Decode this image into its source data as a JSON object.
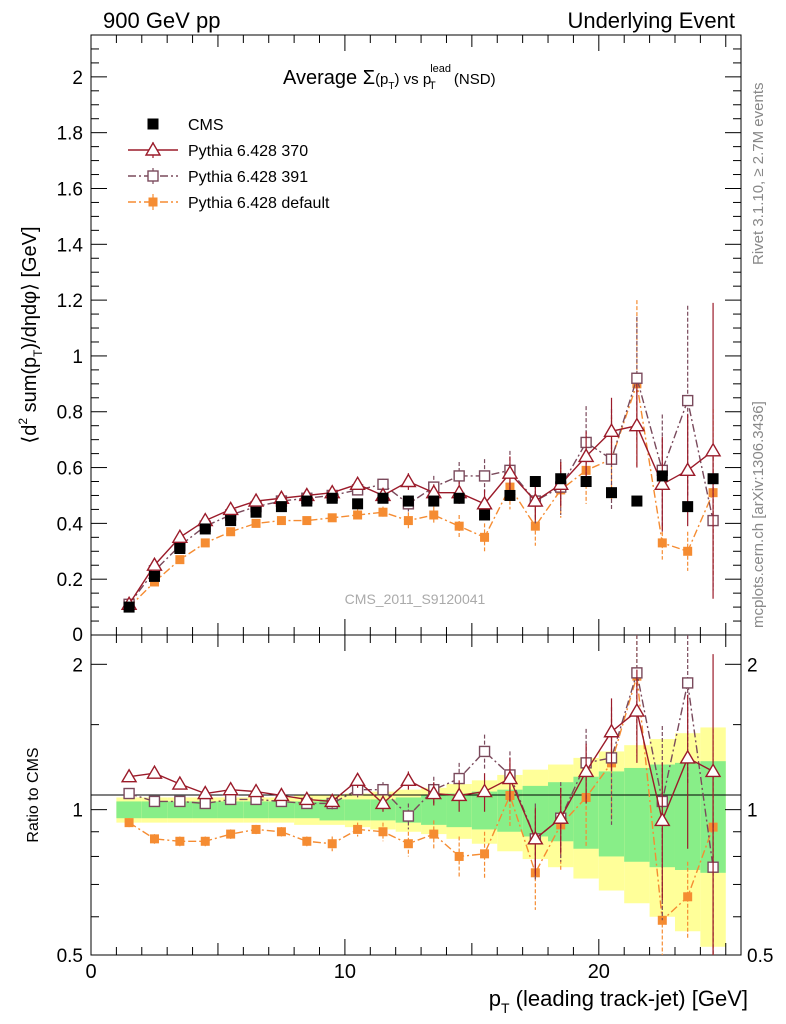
{
  "header": {
    "left": "900 GeV pp",
    "right": "Underlying Event"
  },
  "side_labels": {
    "top": "Rivet 3.1.10, ≥ 2.7M events",
    "bottom": "mcplots.cern.ch [arXiv:1306.3436]"
  },
  "watermark": "CMS_2011_S9120041",
  "chart_data": {
    "type": "scatter",
    "title": "Average Σ(pT) vs pT lead (NSD)",
    "title_parts": {
      "a": "Average ",
      "sigma": "Σ",
      "b": "(p",
      "sub": "T",
      "c": ") vs p",
      "sup": "lead",
      "sub2": "T",
      "d": " (NSD)"
    },
    "ylabel": "⟨d² sum(pT)/dηdφ⟩ [GeV]",
    "ylabel_parts": {
      "a": "⟨d",
      "sup": "2",
      "b": " sum(p",
      "sub": "T",
      "c": ")/dηdφ⟩ [GeV]"
    },
    "xlabel": "pT (leading track-jet) [GeV]",
    "xlabel_parts": {
      "a": "p",
      "sub": "T",
      "b": " (leading track-jet) [GeV]"
    },
    "ratio_ylabel": "Ratio to CMS",
    "xlim": [
      0,
      25.6
    ],
    "ylim": [
      0,
      2.15
    ],
    "ratio_ylim": [
      0.5,
      2.3
    ],
    "xticks": [
      0,
      10,
      20
    ],
    "yticks": [
      0.2,
      0.4,
      0.6,
      0.8,
      1,
      1.2,
      1.4,
      1.6,
      1.8,
      2
    ],
    "ytick_labels": [
      "0.2",
      "0.4",
      "0.6",
      "0.8",
      "1",
      "1.2",
      "1.4",
      "1.6",
      "1.8",
      "2"
    ],
    "ytick_zero_label": "0",
    "ratio_yticks": [
      0.5,
      1,
      2
    ],
    "ratio_ytick_labels": [
      "0.5",
      "1",
      "2"
    ],
    "x": [
      1.5,
      2.5,
      3.5,
      4.5,
      5.5,
      6.5,
      7.5,
      8.5,
      9.5,
      10.5,
      11.5,
      12.5,
      13.5,
      14.5,
      15.5,
      16.5,
      17.5,
      18.5,
      19.5,
      20.5,
      21.5,
      22.5,
      23.5,
      24.5
    ],
    "series": [
      {
        "name": "CMS",
        "color": "#000000",
        "marker": "filled-square",
        "line": "none",
        "values": [
          0.1,
          0.21,
          0.31,
          0.38,
          0.41,
          0.44,
          0.46,
          0.48,
          0.49,
          0.47,
          0.49,
          0.48,
          0.48,
          0.49,
          0.43,
          0.5,
          0.55,
          0.56,
          0.55,
          0.51,
          0.48,
          0.57,
          0.46,
          0.56
        ],
        "band_stat": [
          0.04,
          0.04,
          0.04,
          0.04,
          0.04,
          0.04,
          0.04,
          0.04,
          0.05,
          0.05,
          0.05,
          0.06,
          0.07,
          0.08,
          0.09,
          0.1,
          0.12,
          0.14,
          0.17,
          0.2,
          0.22,
          0.24,
          0.25,
          0.26
        ],
        "band_tot": [
          0.06,
          0.06,
          0.06,
          0.06,
          0.06,
          0.06,
          0.06,
          0.07,
          0.07,
          0.08,
          0.09,
          0.1,
          0.11,
          0.13,
          0.15,
          0.18,
          0.21,
          0.24,
          0.28,
          0.32,
          0.36,
          0.4,
          0.44,
          0.48
        ]
      },
      {
        "name": "Pythia 6.428 370",
        "color": "#9b1b2a",
        "marker": "open-triangle",
        "line": "solid",
        "values": [
          0.11,
          0.25,
          0.35,
          0.41,
          0.45,
          0.48,
          0.49,
          0.5,
          0.51,
          0.54,
          0.5,
          0.55,
          0.51,
          0.51,
          0.47,
          0.58,
          0.48,
          0.54,
          0.64,
          0.73,
          0.75,
          0.54,
          0.59,
          0.66
        ],
        "err": [
          0.01,
          0.01,
          0.01,
          0.01,
          0.01,
          0.01,
          0.01,
          0.01,
          0.02,
          0.02,
          0.02,
          0.03,
          0.03,
          0.04,
          0.05,
          0.06,
          0.07,
          0.08,
          0.09,
          0.12,
          0.15,
          0.17,
          0.2,
          0.53
        ],
        "ratio": [
          1.17,
          1.19,
          1.13,
          1.08,
          1.1,
          1.09,
          1.07,
          1.05,
          1.04,
          1.15,
          1.03,
          1.15,
          1.08,
          1.07,
          1.09,
          1.16,
          0.87,
          0.96,
          1.2,
          1.45,
          1.6,
          0.95,
          1.28,
          1.2
        ],
        "ratio_err": [
          0.02,
          0.02,
          0.02,
          0.02,
          0.02,
          0.02,
          0.02,
          0.02,
          0.03,
          0.04,
          0.04,
          0.05,
          0.06,
          0.08,
          0.1,
          0.12,
          0.14,
          0.15,
          0.17,
          0.25,
          0.35,
          0.3,
          0.45,
          0.9
        ]
      },
      {
        "name": "Pythia 6.428 391",
        "color": "#7a4a5c",
        "marker": "open-square",
        "line": "dashdot",
        "values": [
          0.11,
          0.23,
          0.32,
          0.39,
          0.43,
          0.46,
          0.48,
          0.49,
          0.5,
          0.52,
          0.54,
          0.47,
          0.53,
          0.57,
          0.57,
          0.59,
          0.48,
          0.53,
          0.69,
          0.63,
          0.92,
          0.59,
          0.84,
          0.41
        ],
        "err": [
          0.01,
          0.01,
          0.01,
          0.01,
          0.01,
          0.01,
          0.01,
          0.01,
          0.02,
          0.02,
          0.02,
          0.03,
          0.04,
          0.05,
          0.06,
          0.07,
          0.08,
          0.1,
          0.13,
          0.18,
          0.22,
          0.2,
          0.34,
          0.25
        ],
        "ratio": [
          1.08,
          1.04,
          1.04,
          1.03,
          1.05,
          1.05,
          1.04,
          1.03,
          1.03,
          1.1,
          1.1,
          0.97,
          1.1,
          1.16,
          1.32,
          1.18,
          0.87,
          0.96,
          1.25,
          1.28,
          1.92,
          1.04,
          1.83,
          0.76
        ],
        "ratio_err": [
          0.02,
          0.02,
          0.02,
          0.02,
          0.02,
          0.02,
          0.02,
          0.02,
          0.03,
          0.04,
          0.04,
          0.06,
          0.07,
          0.09,
          0.11,
          0.14,
          0.16,
          0.18,
          0.22,
          0.35,
          0.5,
          0.45,
          0.7,
          0.45
        ]
      },
      {
        "name": "Pythia 6.428 default",
        "color": "#f58c32",
        "marker": "filled-small-square",
        "line": "dashdot",
        "values": [
          0.1,
          0.19,
          0.27,
          0.33,
          0.37,
          0.4,
          0.41,
          0.41,
          0.42,
          0.43,
          0.44,
          0.41,
          0.43,
          0.39,
          0.35,
          0.53,
          0.39,
          0.52,
          0.59,
          0.63,
          0.9,
          0.33,
          0.3,
          0.51
        ],
        "err": [
          0.01,
          0.01,
          0.01,
          0.01,
          0.01,
          0.01,
          0.01,
          0.01,
          0.01,
          0.02,
          0.02,
          0.03,
          0.03,
          0.04,
          0.05,
          0.08,
          0.07,
          0.1,
          0.12,
          0.15,
          0.3,
          0.06,
          0.07,
          0.3
        ],
        "ratio": [
          0.94,
          0.87,
          0.86,
          0.86,
          0.89,
          0.91,
          0.9,
          0.86,
          0.85,
          0.91,
          0.9,
          0.85,
          0.89,
          0.8,
          0.81,
          1.07,
          0.74,
          0.93,
          1.06,
          1.25,
          1.89,
          0.59,
          0.66,
          0.92
        ],
        "ratio_err": [
          0.02,
          0.02,
          0.02,
          0.02,
          0.02,
          0.02,
          0.02,
          0.02,
          0.03,
          0.03,
          0.04,
          0.05,
          0.06,
          0.08,
          0.09,
          0.15,
          0.12,
          0.18,
          0.22,
          0.3,
          0.6,
          0.1,
          0.12,
          0.55
        ]
      }
    ],
    "legend_location": "top-left"
  }
}
